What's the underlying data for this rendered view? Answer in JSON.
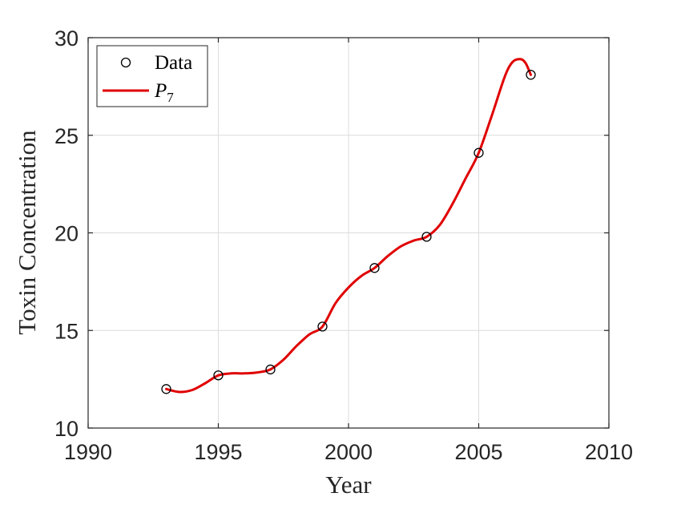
{
  "chart_data": {
    "type": "line",
    "title": "",
    "xlabel": "Year",
    "ylabel": "Toxin Concentration",
    "xlim": [
      1990,
      2010
    ],
    "ylim": [
      10,
      30
    ],
    "xticks": [
      1990,
      1995,
      2000,
      2005,
      2010
    ],
    "yticks": [
      10,
      15,
      20,
      25,
      30
    ],
    "grid": true,
    "legend_position": "top-left",
    "series": [
      {
        "name": "Data",
        "style": "markers",
        "marker": "open-circle",
        "color": "#000000",
        "x": [
          1993,
          1995,
          1997,
          1999,
          2001,
          2003,
          2005,
          2007
        ],
        "y": [
          12.0,
          12.7,
          13.0,
          15.2,
          18.2,
          19.8,
          24.1,
          28.1
        ]
      },
      {
        "name": "P",
        "name_subscript": "7",
        "style": "line",
        "color": "#e00000",
        "x": [
          1993,
          1993.5,
          1994,
          1994.5,
          1995,
          1995.5,
          1996,
          1996.5,
          1997,
          1997.5,
          1998,
          1998.5,
          1999,
          1999.5,
          2000,
          2000.5,
          2001,
          2001.5,
          2002,
          2002.5,
          2003,
          2003.5,
          2004,
          2004.5,
          2005,
          2005.5,
          2006,
          2006.3,
          2006.6,
          2006.8,
          2007
        ],
        "y": [
          12.0,
          11.85,
          11.95,
          12.3,
          12.7,
          12.8,
          12.8,
          12.85,
          13.0,
          13.5,
          14.2,
          14.8,
          15.2,
          16.4,
          17.2,
          17.8,
          18.2,
          18.8,
          19.3,
          19.6,
          19.8,
          20.4,
          21.5,
          22.8,
          24.1,
          26.0,
          28.0,
          28.75,
          28.9,
          28.7,
          28.1
        ]
      }
    ]
  }
}
